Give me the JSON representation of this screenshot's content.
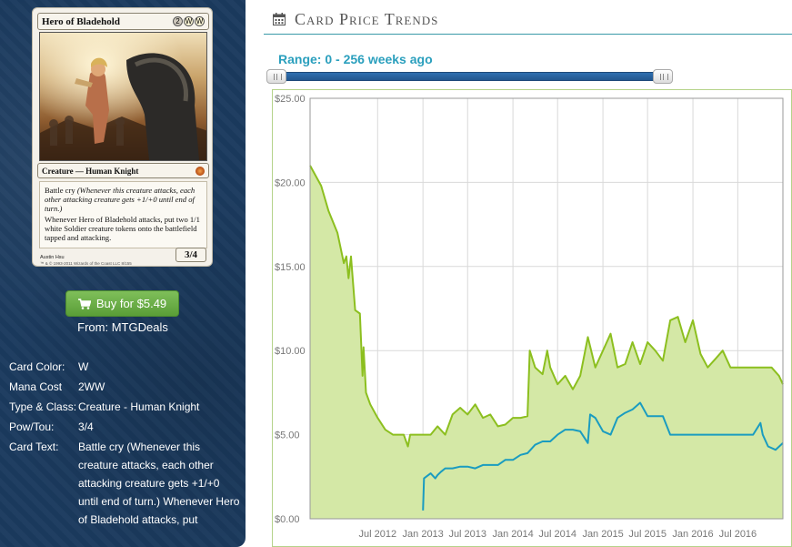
{
  "card": {
    "name": "Hero of Bladehold",
    "mana_symbols": [
      "2",
      "W",
      "W"
    ],
    "type_line": "Creature — Human Knight",
    "text_reminder_intro": "Battle cry",
    "text_reminder": "(Whenever this creature attacks, each other attacking creature gets +1/+0 until end of turn.)",
    "text_ability": "Whenever Hero of Bladehold attacks, put two 1/1 white Soldier creature tokens onto the battlefield tapped and attacking.",
    "power_toughness": "3/4",
    "artist": "Austin Hsu",
    "copyright": "™ & © 1993-2011 Wizards of the Coast LLC 8/155"
  },
  "buy": {
    "label": "Buy for $5.49",
    "from": "From: MTGDeals",
    "icon": "shopping-cart-icon"
  },
  "details": [
    {
      "key": "Card Color:",
      "value": "W"
    },
    {
      "key": "Mana Cost",
      "value": "2WW"
    },
    {
      "key": "Type & Class:",
      "value": "Creature - Human Knight"
    },
    {
      "key": "Pow/Tou:",
      "value": "3/4"
    },
    {
      "key": "Card Text:",
      "value": "Battle cry (Whenever this creature attacks, each other attacking creature gets +1/+0 until end of turn.) Whenever Hero of Bladehold attacks, put"
    }
  ],
  "header": {
    "title": "Card Price Trends",
    "icon": "calendar-icon"
  },
  "range": {
    "label": "Range: 0 - 256 weeks ago",
    "min_weeks": 0,
    "max_weeks": 256
  },
  "colors": {
    "sidebar_bg": "#1b3a5e",
    "accent": "#2a9fbd",
    "buy_green": "#66ab42",
    "series_green": "#8cbf1f",
    "series_green_fill": "#d4e8a6",
    "series_blue": "#1a9cc0"
  },
  "chart_data": {
    "type": "line",
    "title": "",
    "xlabel": "",
    "ylabel": "",
    "ylim": [
      0,
      25
    ],
    "xlim": [
      "2011-10-01",
      "2016-12-31"
    ],
    "y_ticks": [
      "$0.00",
      "$5.00",
      "$10.00",
      "$15.00",
      "$20.00",
      "$25.00"
    ],
    "x_ticks": [
      {
        "label": "Jul 2012",
        "date": "2012-07-01"
      },
      {
        "label": "Jan 2013",
        "date": "2013-01-01"
      },
      {
        "label": "Jul 2013",
        "date": "2013-07-01"
      },
      {
        "label": "Jan 2014",
        "date": "2014-01-01"
      },
      {
        "label": "Jul 2014",
        "date": "2014-07-01"
      },
      {
        "label": "Jan 2015",
        "date": "2015-01-01"
      },
      {
        "label": "Jul 2015",
        "date": "2015-07-01"
      },
      {
        "label": "Jan 2016",
        "date": "2016-01-01"
      },
      {
        "label": "Jul 2016",
        "date": "2016-07-01"
      }
    ],
    "grid": true,
    "legend": "none",
    "series": [
      {
        "style": "area",
        "color": "#8cbf1f",
        "points": [
          [
            "2011-10-01",
            21.0
          ],
          [
            "2011-11-15",
            19.8
          ],
          [
            "2011-12-15",
            18.3
          ],
          [
            "2012-01-20",
            17.0
          ],
          [
            "2012-02-15",
            15.2
          ],
          [
            "2012-02-25",
            15.6
          ],
          [
            "2012-03-05",
            14.3
          ],
          [
            "2012-03-15",
            15.6
          ],
          [
            "2012-04-01",
            12.4
          ],
          [
            "2012-04-20",
            12.2
          ],
          [
            "2012-05-01",
            8.5
          ],
          [
            "2012-05-05",
            10.2
          ],
          [
            "2012-05-15",
            7.5
          ],
          [
            "2012-06-01",
            6.8
          ],
          [
            "2012-07-01",
            6.0
          ],
          [
            "2012-08-01",
            5.3
          ],
          [
            "2012-09-01",
            5.0
          ],
          [
            "2012-10-15",
            5.0
          ],
          [
            "2012-11-01",
            4.3
          ],
          [
            "2012-11-10",
            5.0
          ],
          [
            "2013-01-01",
            5.0
          ],
          [
            "2013-02-01",
            5.0
          ],
          [
            "2013-03-01",
            5.5
          ],
          [
            "2013-04-01",
            5.0
          ],
          [
            "2013-05-01",
            6.2
          ],
          [
            "2013-06-01",
            6.6
          ],
          [
            "2013-07-01",
            6.2
          ],
          [
            "2013-08-01",
            6.8
          ],
          [
            "2013-09-01",
            6.0
          ],
          [
            "2013-10-01",
            6.2
          ],
          [
            "2013-11-01",
            5.5
          ],
          [
            "2013-12-01",
            5.6
          ],
          [
            "2014-01-01",
            6.0
          ],
          [
            "2014-02-01",
            6.0
          ],
          [
            "2014-03-01",
            6.1
          ],
          [
            "2014-03-10",
            10.0
          ],
          [
            "2014-04-01",
            9.0
          ],
          [
            "2014-05-01",
            8.6
          ],
          [
            "2014-05-20",
            10.0
          ],
          [
            "2014-06-01",
            9.0
          ],
          [
            "2014-07-01",
            8.0
          ],
          [
            "2014-08-01",
            8.5
          ],
          [
            "2014-09-01",
            7.7
          ],
          [
            "2014-10-01",
            8.5
          ],
          [
            "2014-11-01",
            10.8
          ],
          [
            "2014-12-01",
            9.0
          ],
          [
            "2015-01-01",
            10.0
          ],
          [
            "2015-02-01",
            11.0
          ],
          [
            "2015-03-01",
            9.0
          ],
          [
            "2015-04-01",
            9.2
          ],
          [
            "2015-05-01",
            10.5
          ],
          [
            "2015-06-01",
            9.2
          ],
          [
            "2015-07-01",
            10.5
          ],
          [
            "2015-08-01",
            10.0
          ],
          [
            "2015-09-01",
            9.4
          ],
          [
            "2015-10-01",
            11.8
          ],
          [
            "2015-11-01",
            12.0
          ],
          [
            "2015-12-01",
            10.5
          ],
          [
            "2016-01-01",
            11.8
          ],
          [
            "2016-02-01",
            9.8
          ],
          [
            "2016-03-01",
            9.0
          ],
          [
            "2016-04-01",
            9.5
          ],
          [
            "2016-05-01",
            10.0
          ],
          [
            "2016-06-01",
            9.0
          ],
          [
            "2016-08-01",
            9.0
          ],
          [
            "2016-10-01",
            9.0
          ],
          [
            "2016-11-15",
            9.0
          ],
          [
            "2016-12-15",
            8.5
          ],
          [
            "2016-12-31",
            8.0
          ]
        ]
      },
      {
        "style": "line",
        "color": "#1a9cc0",
        "points": [
          [
            "2013-01-01",
            0.5
          ],
          [
            "2013-01-05",
            2.4
          ],
          [
            "2013-02-01",
            2.7
          ],
          [
            "2013-02-20",
            2.4
          ],
          [
            "2013-03-01",
            2.6
          ],
          [
            "2013-03-15",
            2.8
          ],
          [
            "2013-04-01",
            3.0
          ],
          [
            "2013-05-01",
            3.0
          ],
          [
            "2013-06-01",
            3.1
          ],
          [
            "2013-07-01",
            3.1
          ],
          [
            "2013-08-01",
            3.0
          ],
          [
            "2013-09-01",
            3.2
          ],
          [
            "2013-11-01",
            3.2
          ],
          [
            "2013-12-01",
            3.5
          ],
          [
            "2014-01-01",
            3.5
          ],
          [
            "2014-02-01",
            3.8
          ],
          [
            "2014-03-01",
            3.9
          ],
          [
            "2014-04-01",
            4.4
          ],
          [
            "2014-05-01",
            4.6
          ],
          [
            "2014-06-01",
            4.6
          ],
          [
            "2014-07-01",
            5.0
          ],
          [
            "2014-08-01",
            5.3
          ],
          [
            "2014-09-01",
            5.3
          ],
          [
            "2014-10-01",
            5.2
          ],
          [
            "2014-11-01",
            4.5
          ],
          [
            "2014-11-10",
            6.2
          ],
          [
            "2014-12-01",
            6.0
          ],
          [
            "2015-01-01",
            5.2
          ],
          [
            "2015-02-01",
            5.0
          ],
          [
            "2015-03-01",
            6.0
          ],
          [
            "2015-04-01",
            6.3
          ],
          [
            "2015-05-01",
            6.5
          ],
          [
            "2015-06-01",
            6.9
          ],
          [
            "2015-07-01",
            6.1
          ],
          [
            "2015-08-01",
            6.1
          ],
          [
            "2015-09-01",
            6.1
          ],
          [
            "2015-10-01",
            5.0
          ],
          [
            "2015-12-01",
            5.0
          ],
          [
            "2016-01-01",
            5.0
          ],
          [
            "2016-04-01",
            5.0
          ],
          [
            "2016-07-01",
            5.0
          ],
          [
            "2016-09-01",
            5.0
          ],
          [
            "2016-10-01",
            5.7
          ],
          [
            "2016-10-10",
            5.0
          ],
          [
            "2016-11-01",
            4.3
          ],
          [
            "2016-12-01",
            4.1
          ],
          [
            "2016-12-31",
            4.5
          ]
        ]
      }
    ]
  }
}
